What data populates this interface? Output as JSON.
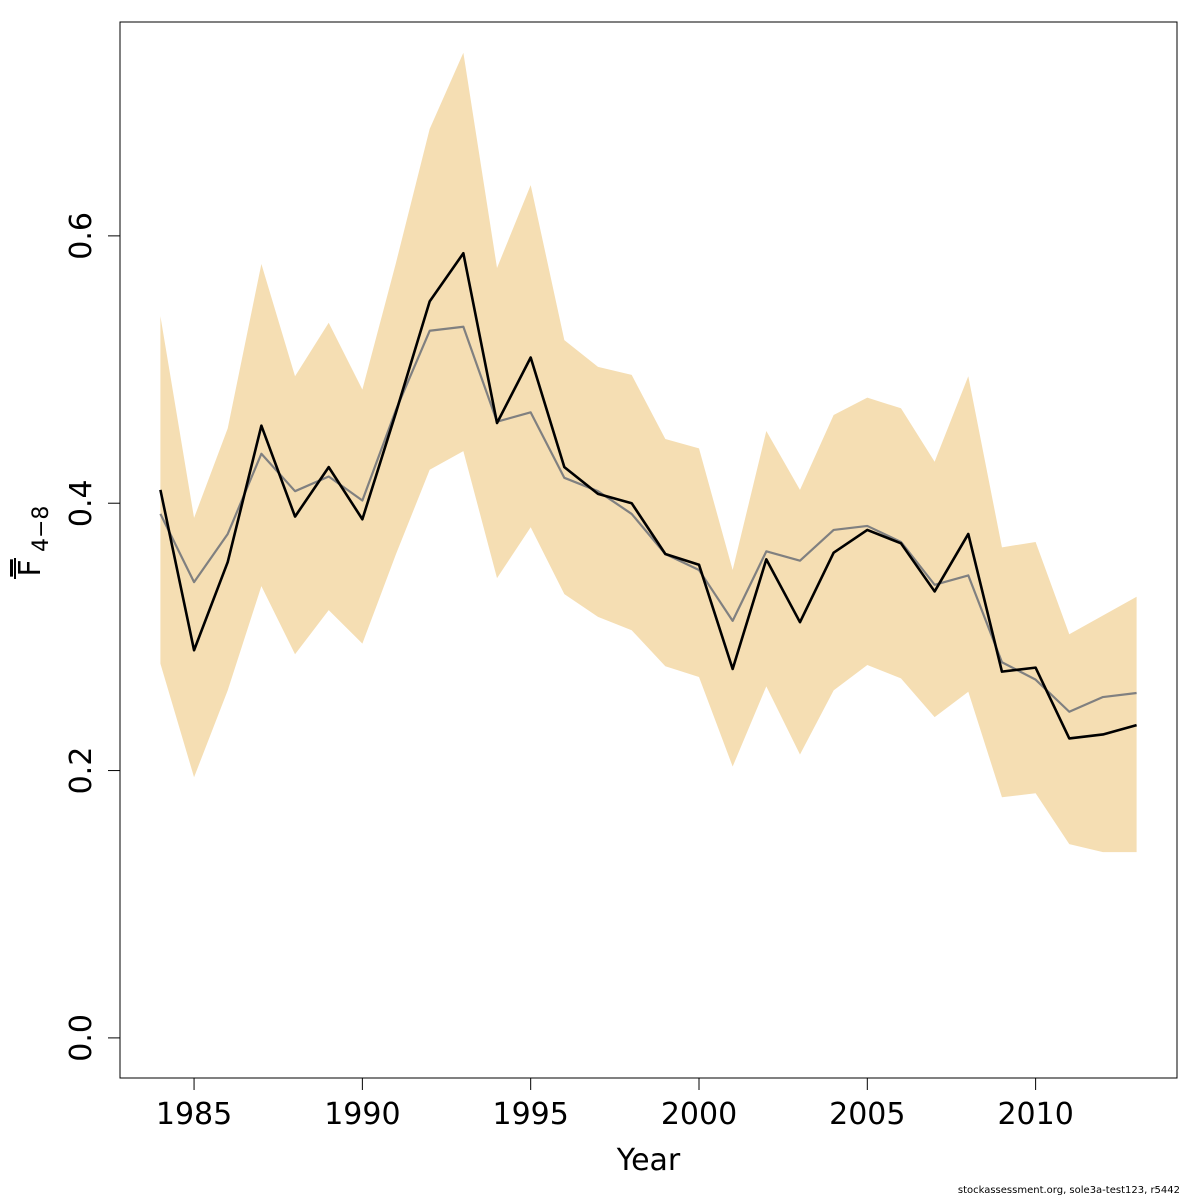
{
  "chart_data": {
    "type": "line",
    "xlabel": "Year",
    "ylabel_main": "F",
    "ylabel_sub": "4−8",
    "xlim": [
      1982.8,
      2014.2
    ],
    "ylim": [
      -0.03,
      0.76
    ],
    "x_ticks": [
      1985,
      1990,
      1995,
      2000,
      2005,
      2010
    ],
    "x_tick_labels": [
      "1985",
      "1990",
      "1995",
      "2000",
      "2005",
      "2010"
    ],
    "y_ticks": [
      0.0,
      0.2,
      0.4,
      0.6
    ],
    "y_tick_labels": [
      "0.0",
      "0.2",
      "0.4",
      "0.6"
    ],
    "grid": false,
    "colors": {
      "band": "#F5DEB3",
      "estimate": "#000000",
      "comparison": "#808080",
      "axis": "#000000"
    },
    "x": [
      1984,
      1985,
      1986,
      1987,
      1988,
      1989,
      1990,
      1991,
      1992,
      1993,
      1994,
      1995,
      1996,
      1997,
      1998,
      1999,
      2000,
      2001,
      2002,
      2003,
      2004,
      2005,
      2006,
      2007,
      2008,
      2009,
      2010,
      2011,
      2012,
      2013
    ],
    "series": [
      {
        "values": [
          0.41,
          0.29,
          0.356,
          0.458,
          0.39,
          0.427,
          0.388,
          0.468,
          0.551,
          0.587,
          0.46,
          0.509,
          0.427,
          0.407,
          0.4,
          0.362,
          0.354,
          0.276,
          0.358,
          0.311,
          0.363,
          0.38,
          0.37,
          0.334,
          0.377,
          0.274,
          0.277,
          0.224,
          0.227,
          0.234
        ]
      },
      {
        "values": [
          0.392,
          0.341,
          0.377,
          0.437,
          0.409,
          0.42,
          0.402,
          0.47,
          0.529,
          0.532,
          0.461,
          0.468,
          0.419,
          0.409,
          0.392,
          0.362,
          0.35,
          0.312,
          0.364,
          0.357,
          0.38,
          0.383,
          0.371,
          0.339,
          0.346,
          0.281,
          0.268,
          0.244,
          0.255,
          0.258
        ]
      }
    ],
    "band": {
      "upper": [
        0.54,
        0.389,
        0.456,
        0.579,
        0.495,
        0.535,
        0.485,
        0.58,
        0.68,
        0.737,
        0.576,
        0.638,
        0.522,
        0.502,
        0.496,
        0.448,
        0.441,
        0.35,
        0.454,
        0.41,
        0.466,
        0.479,
        0.471,
        0.431,
        0.495,
        0.367,
        0.371,
        0.302,
        0.316,
        0.33
      ],
      "lower": [
        0.28,
        0.195,
        0.26,
        0.338,
        0.287,
        0.32,
        0.295,
        0.362,
        0.425,
        0.439,
        0.344,
        0.382,
        0.332,
        0.315,
        0.305,
        0.278,
        0.27,
        0.203,
        0.263,
        0.212,
        0.26,
        0.279,
        0.269,
        0.24,
        0.259,
        0.18,
        0.183,
        0.145,
        0.139,
        0.139
      ]
    }
  },
  "footer": {
    "note": "stockassessment.org, sole3a-test123, r5442"
  }
}
